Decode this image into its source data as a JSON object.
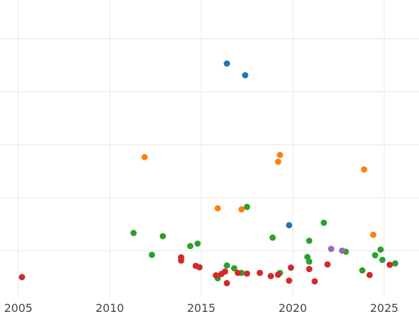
{
  "chart_data": {
    "type": "scatter",
    "title": "",
    "xlabel": "",
    "ylabel": "",
    "grid": true,
    "legend": "none",
    "xlim": [
      2004.0,
      2026.9
    ],
    "ylim": [
      -1.3,
      7.1
    ],
    "x_ticks": [
      2005,
      2010,
      2015,
      2020,
      2025
    ],
    "x_tick_labels": [
      "2005",
      "2010",
      "2015",
      "2020",
      "2025"
    ],
    "y_grid": [
      0,
      1.5,
      3,
      4.5,
      6
    ],
    "series": [
      {
        "color": "#1f77b4",
        "points": [
          {
            "x": 2016.4,
            "y": 5.3
          },
          {
            "x": 2017.4,
            "y": 4.97
          },
          {
            "x": 2019.8,
            "y": 0.72
          }
        ]
      },
      {
        "color": "#ff7f0e",
        "points": [
          {
            "x": 2011.9,
            "y": 2.65
          },
          {
            "x": 2015.9,
            "y": 1.2
          },
          {
            "x": 2017.2,
            "y": 1.17
          },
          {
            "x": 2019.2,
            "y": 2.52
          },
          {
            "x": 2019.3,
            "y": 2.71
          },
          {
            "x": 2023.9,
            "y": 2.3
          },
          {
            "x": 2024.4,
            "y": 0.45
          }
        ]
      },
      {
        "color": "#2ca02c",
        "points": [
          {
            "x": 2011.3,
            "y": 0.5
          },
          {
            "x": 2012.3,
            "y": -0.12
          },
          {
            "x": 2012.9,
            "y": 0.41
          },
          {
            "x": 2014.4,
            "y": 0.13
          },
          {
            "x": 2014.8,
            "y": 0.2
          },
          {
            "x": 2015.9,
            "y": -0.78
          },
          {
            "x": 2016.4,
            "y": -0.42
          },
          {
            "x": 2016.8,
            "y": -0.5
          },
          {
            "x": 2017.2,
            "y": -0.63
          },
          {
            "x": 2017.5,
            "y": 1.24
          },
          {
            "x": 2018.9,
            "y": 0.37
          },
          {
            "x": 2019.3,
            "y": -0.63
          },
          {
            "x": 2020.8,
            "y": -0.18
          },
          {
            "x": 2020.9,
            "y": 0.28
          },
          {
            "x": 2020.9,
            "y": -0.31
          },
          {
            "x": 2021.7,
            "y": 0.79
          },
          {
            "x": 2022.9,
            "y": -0.03
          },
          {
            "x": 2023.8,
            "y": -0.56
          },
          {
            "x": 2024.5,
            "y": -0.13
          },
          {
            "x": 2024.8,
            "y": 0.03
          },
          {
            "x": 2024.9,
            "y": -0.26
          },
          {
            "x": 2025.6,
            "y": -0.36
          }
        ]
      },
      {
        "color": "#d62728",
        "points": [
          {
            "x": 2005.2,
            "y": -0.75
          },
          {
            "x": 2013.9,
            "y": -0.19
          },
          {
            "x": 2013.9,
            "y": -0.28
          },
          {
            "x": 2014.7,
            "y": -0.43
          },
          {
            "x": 2014.9,
            "y": -0.47
          },
          {
            "x": 2015.8,
            "y": -0.7
          },
          {
            "x": 2016.1,
            "y": -0.66
          },
          {
            "x": 2016.3,
            "y": -0.59
          },
          {
            "x": 2016.4,
            "y": -0.92
          },
          {
            "x": 2017.0,
            "y": -0.63
          },
          {
            "x": 2017.5,
            "y": -0.65
          },
          {
            "x": 2018.2,
            "y": -0.63
          },
          {
            "x": 2018.8,
            "y": -0.72
          },
          {
            "x": 2019.2,
            "y": -0.68
          },
          {
            "x": 2019.8,
            "y": -0.85
          },
          {
            "x": 2019.9,
            "y": -0.48
          },
          {
            "x": 2020.9,
            "y": -0.52
          },
          {
            "x": 2021.2,
            "y": -0.87
          },
          {
            "x": 2021.9,
            "y": -0.39
          },
          {
            "x": 2024.2,
            "y": -0.69
          },
          {
            "x": 2025.3,
            "y": -0.4
          }
        ]
      },
      {
        "color": "#9467bd",
        "points": [
          {
            "x": 2022.1,
            "y": 0.05
          },
          {
            "x": 2022.7,
            "y": 0.0
          }
        ]
      }
    ]
  }
}
